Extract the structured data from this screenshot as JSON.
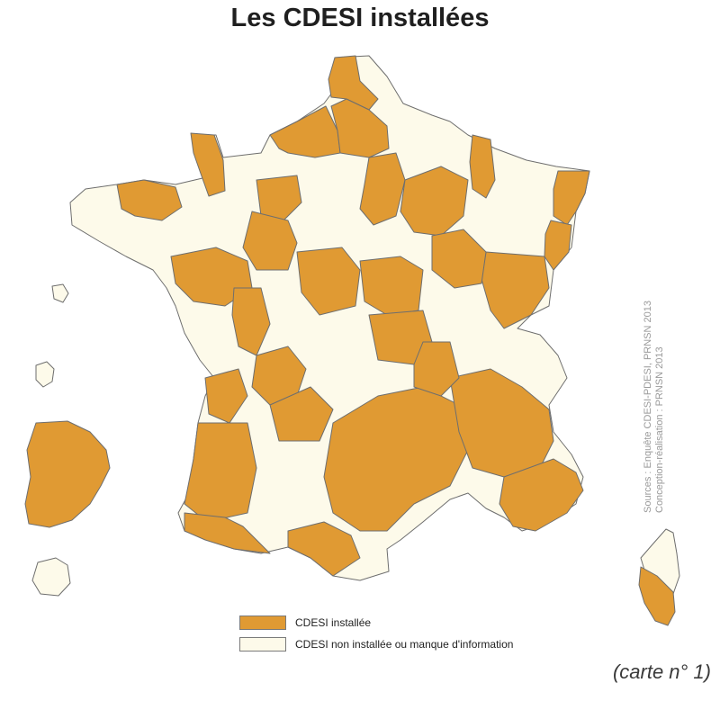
{
  "title": "Les CDESI installées",
  "colors": {
    "installed": "#E09A33",
    "not_installed": "#FDFAEA",
    "border": "#6e6e6e"
  },
  "legend": [
    {
      "key": "installed",
      "label": "CDESI installée"
    },
    {
      "key": "not_installed",
      "label": "CDESI non installée ou manque d'information"
    }
  ],
  "sources": {
    "line1": "Sources : Enquête CDESI-PDESI, PRNSN 2013",
    "line2": "Conception-réalisation : PRNSN 2013"
  },
  "caption": "(carte n° 1)"
}
